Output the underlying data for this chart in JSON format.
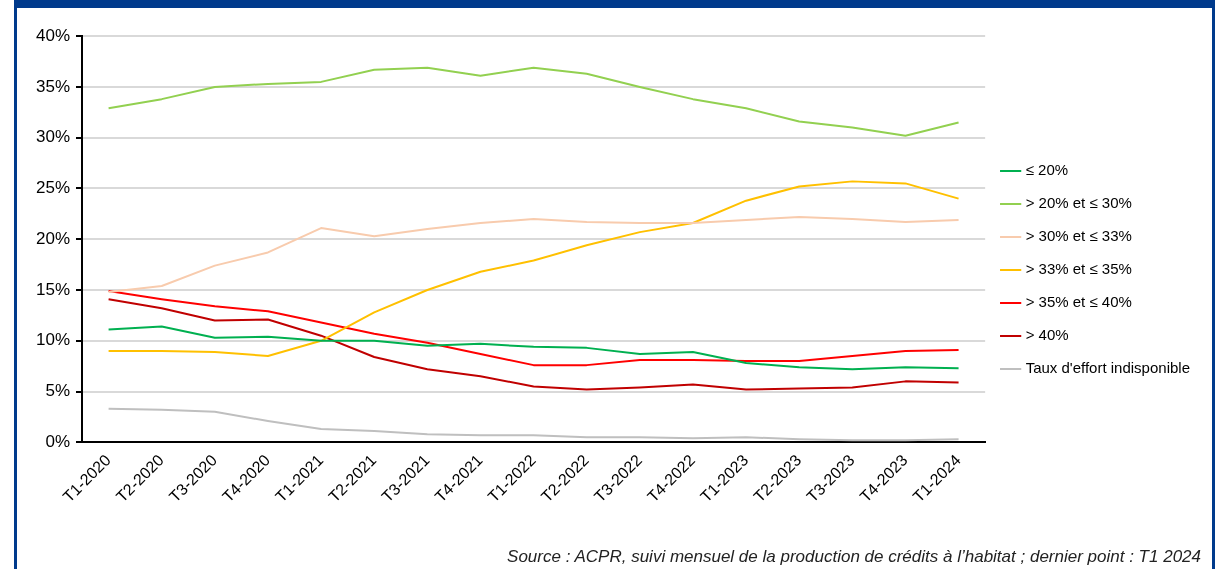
{
  "chart_data": {
    "type": "line",
    "categories": [
      "T1-2020",
      "T2-2020",
      "T3-2020",
      "T4-2020",
      "T1-2021",
      "T2-2021",
      "T3-2021",
      "T4-2021",
      "T1-2022",
      "T2-2022",
      "T3-2022",
      "T4-2022",
      "T1-2023",
      "T2-2023",
      "T3-2023",
      "T4-2023",
      "T1-2024"
    ],
    "series": [
      {
        "name": "≤ 20%",
        "color": "#00b050",
        "values": [
          11.1,
          11.4,
          10.3,
          10.4,
          10.0,
          10.0,
          9.5,
          9.7,
          9.4,
          9.3,
          8.7,
          8.9,
          7.8,
          7.4,
          7.2,
          7.4,
          7.3
        ]
      },
      {
        "name": "> 20% et ≤ 30%",
        "color": "#92d050",
        "values": [
          32.9,
          33.8,
          35.0,
          35.3,
          35.5,
          36.7,
          36.9,
          36.1,
          36.9,
          36.3,
          35.0,
          33.8,
          32.9,
          31.6,
          31.0,
          30.2,
          31.5
        ]
      },
      {
        "name": "> 30% et ≤ 33%",
        "color": "#f8cbad",
        "values": [
          14.8,
          15.4,
          17.4,
          18.7,
          21.1,
          20.3,
          21.0,
          21.6,
          22.0,
          21.7,
          21.6,
          21.6,
          21.9,
          22.2,
          22.0,
          21.7,
          21.9
        ]
      },
      {
        "name": "> 33% et ≤ 35%",
        "color": "#ffc000",
        "values": [
          9.0,
          9.0,
          8.9,
          8.5,
          10.0,
          12.8,
          15.0,
          16.8,
          17.9,
          19.4,
          20.7,
          21.6,
          23.8,
          25.2,
          25.7,
          25.5,
          24.0
        ]
      },
      {
        "name": "> 35% et ≤ 40%",
        "color": "#ff0000",
        "values": [
          14.9,
          14.1,
          13.4,
          12.9,
          11.8,
          10.7,
          9.8,
          8.7,
          7.6,
          7.6,
          8.1,
          8.1,
          8.0,
          8.0,
          8.5,
          9.0,
          9.1
        ]
      },
      {
        "name": "> 40%",
        "color": "#c00000",
        "values": [
          14.1,
          13.2,
          12.0,
          12.1,
          10.5,
          8.4,
          7.2,
          6.5,
          5.5,
          5.2,
          5.4,
          5.7,
          5.2,
          5.3,
          5.4,
          6.0,
          5.9
        ]
      },
      {
        "name": "Taux d'effort indisponible",
        "color": "#bfbfbf",
        "values": [
          3.3,
          3.2,
          3.0,
          2.1,
          1.3,
          1.1,
          0.8,
          0.7,
          0.7,
          0.5,
          0.5,
          0.4,
          0.5,
          0.3,
          0.2,
          0.2,
          0.3
        ]
      }
    ],
    "ylim": [
      0,
      40
    ],
    "yticks": [
      {
        "value": 0,
        "label": "0%"
      },
      {
        "value": 5,
        "label": "5%"
      },
      {
        "value": 10,
        "label": "10%"
      },
      {
        "value": 15,
        "label": "15%"
      },
      {
        "value": 20,
        "label": "20%"
      },
      {
        "value": 25,
        "label": "25%"
      },
      {
        "value": 30,
        "label": "30%"
      },
      {
        "value": 35,
        "label": "35%"
      },
      {
        "value": 40,
        "label": "40%"
      }
    ],
    "grid": "y",
    "legend": "right",
    "marker": "none",
    "line_style": "solid",
    "annotations": [
      "Source : ACPR, suivi mensuel de la production de crédits à l’habitat ; dernier point : T1 2024"
    ]
  }
}
